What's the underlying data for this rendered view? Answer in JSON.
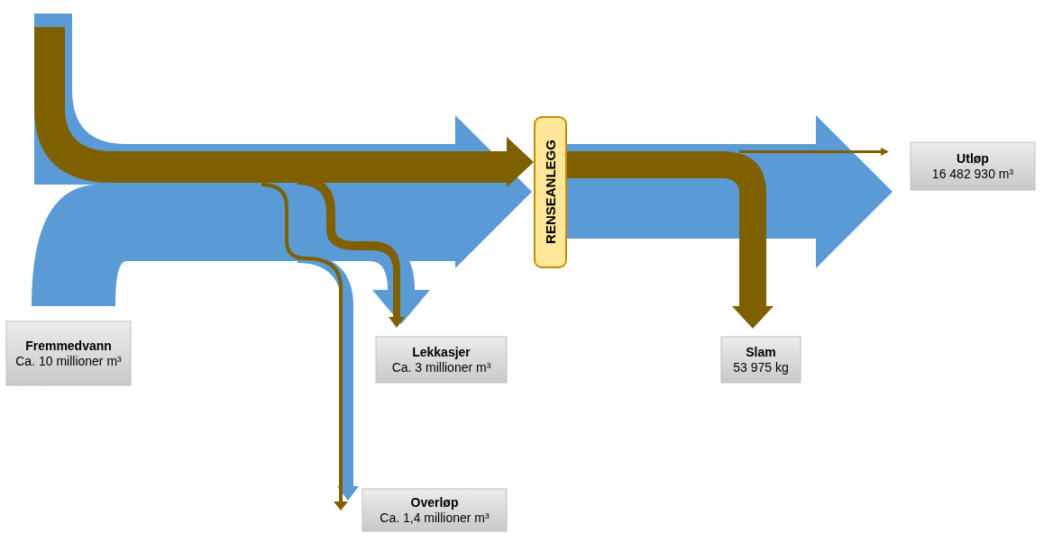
{
  "chart_data": {
    "type": "other",
    "categories": [
      "Fremmedvann",
      "Lekkasjer",
      "Overløp",
      "Utløp",
      "Slam"
    ],
    "values": [
      10000000,
      3000000,
      1400000,
      16482930,
      53975
    ],
    "value_labels": [
      "Ca. 10 millioner m³",
      "Ca. 3 millioner m³",
      "Ca. 1,4 millioner m³",
      "16 482 930 m³",
      "53 975 kg"
    ],
    "annotations": [
      "RENSEANLEGG"
    ]
  }
}
